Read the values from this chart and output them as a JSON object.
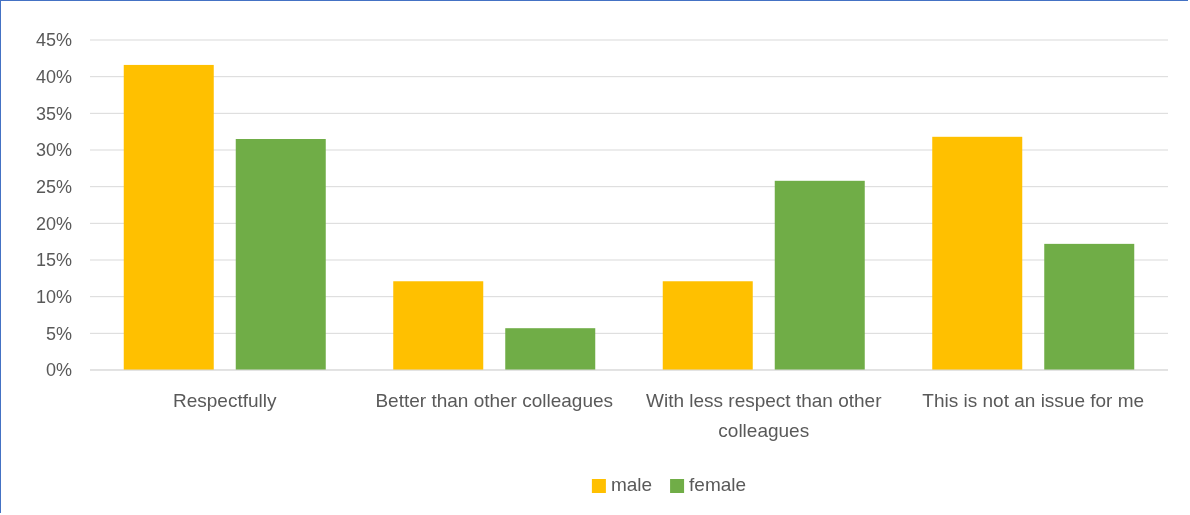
{
  "chart_data": {
    "type": "bar",
    "categories": [
      "Respectfully",
      "Better than other colleagues",
      "With less respect than other colleagues",
      "This is not an issue for me"
    ],
    "series": [
      {
        "name": "male",
        "color": "#ffc000",
        "values": [
          41.6,
          12.1,
          12.1,
          31.8
        ]
      },
      {
        "name": "female",
        "color": "#70ad47",
        "values": [
          31.5,
          5.7,
          25.8,
          17.2
        ]
      }
    ],
    "ylim": [
      0,
      45
    ],
    "yticks": [
      {
        "value": 0,
        "label": "0%"
      },
      {
        "value": 5,
        "label": "5%"
      },
      {
        "value": 10,
        "label": "10%"
      },
      {
        "value": 15,
        "label": "15%"
      },
      {
        "value": 20,
        "label": "20%"
      },
      {
        "value": 25,
        "label": "25%"
      },
      {
        "value": 30,
        "label": "30%"
      },
      {
        "value": 35,
        "label": "35%"
      },
      {
        "value": 40,
        "label": "40%"
      },
      {
        "value": 45,
        "label": "45%"
      }
    ],
    "grid": "y",
    "legend": "bottom"
  }
}
